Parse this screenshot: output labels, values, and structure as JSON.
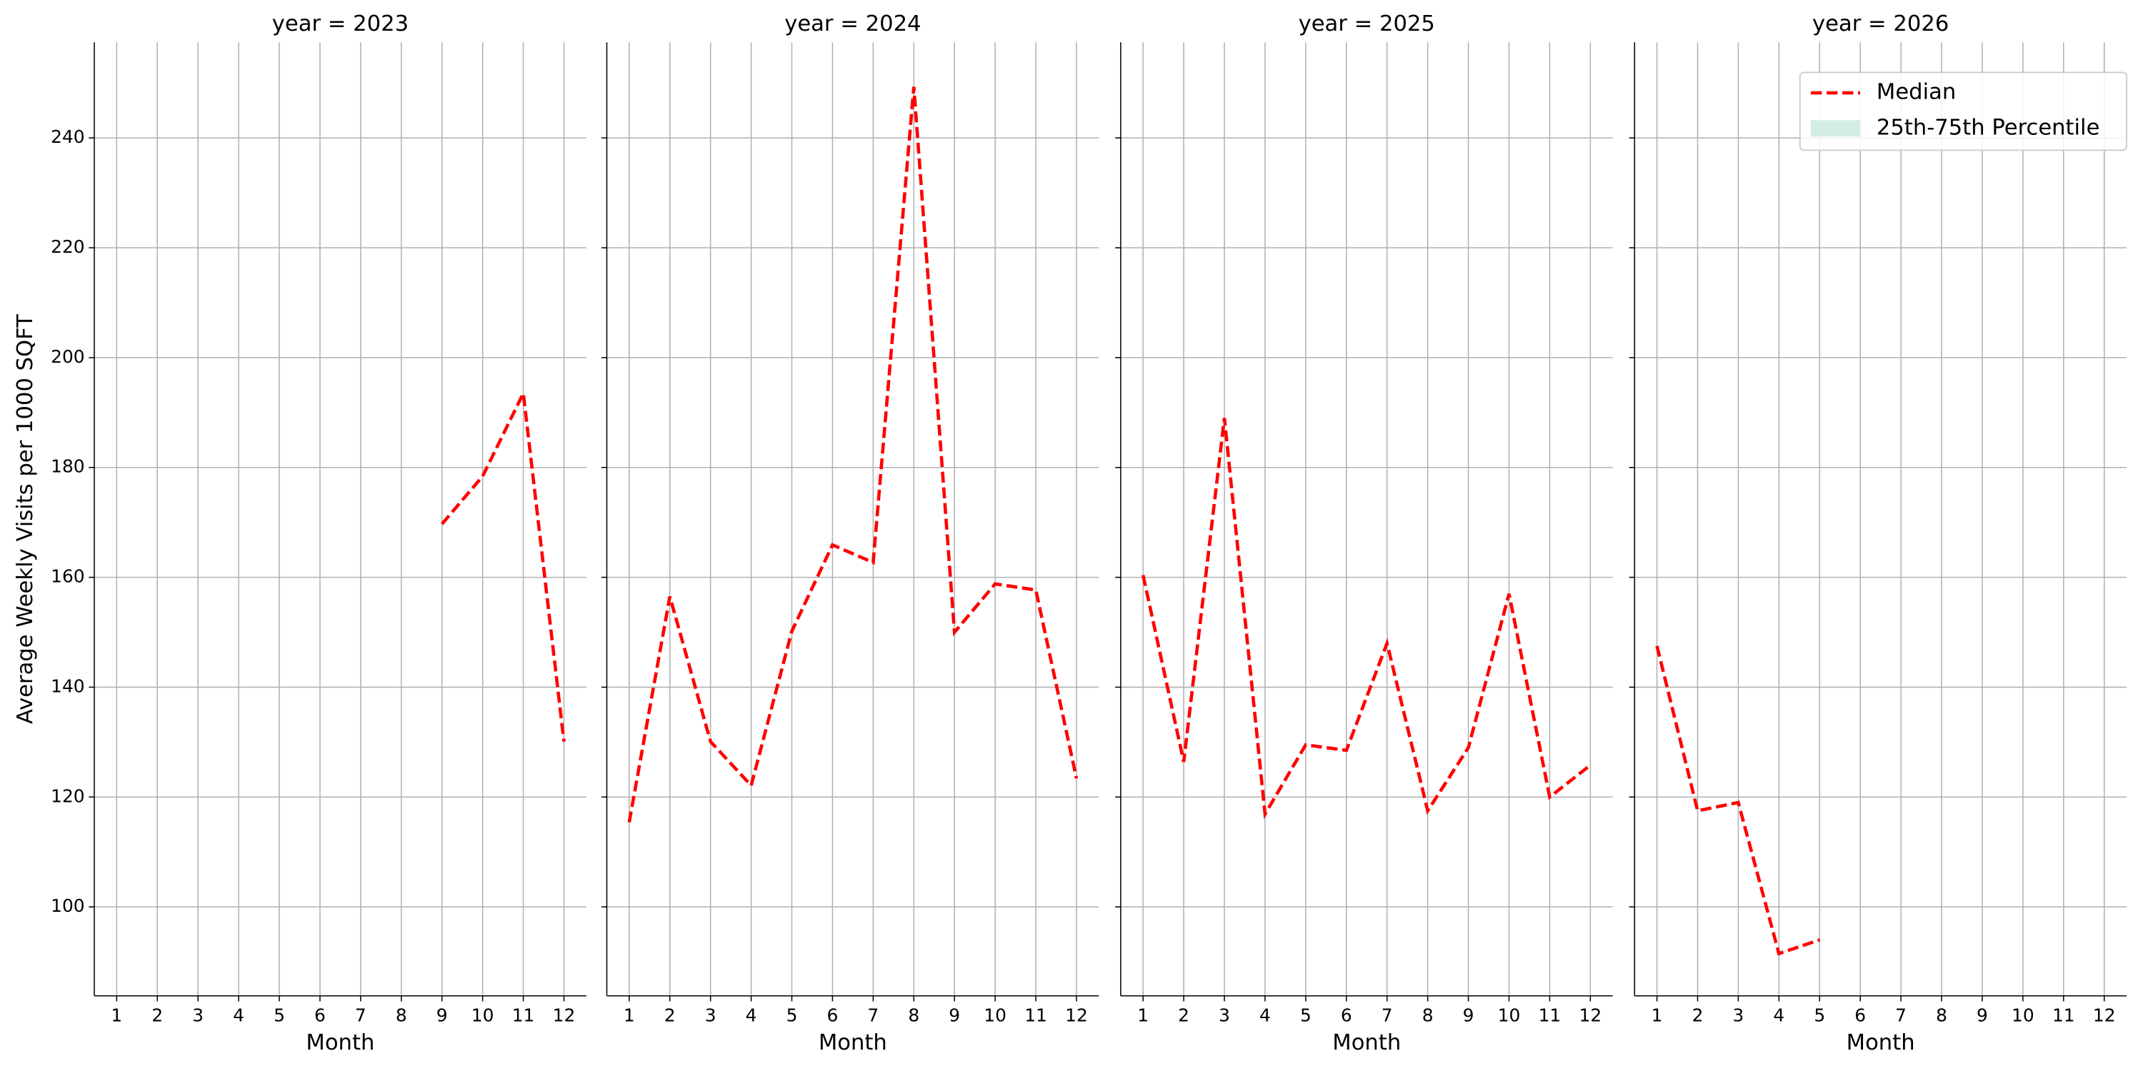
{
  "chart_data": [
    {
      "type": "line",
      "title": "year = 2023",
      "xlabel": "Month",
      "ylabel": "Average Weekly Visits per 1000 SQFT",
      "x": [
        1,
        2,
        3,
        4,
        5,
        6,
        7,
        8,
        9,
        10,
        11,
        12
      ],
      "xlim": [
        0.45,
        12.55
      ],
      "xticks": [
        1,
        2,
        3,
        4,
        5,
        6,
        7,
        8,
        9,
        10,
        11,
        12
      ],
      "ylim": [
        83.8,
        257.4
      ],
      "yticks": [
        100,
        120,
        140,
        160,
        180,
        200,
        220,
        240
      ],
      "ytick_labels": true,
      "grid": true,
      "series": [
        {
          "name": "Median",
          "color": "#ff0000",
          "values": [
            null,
            null,
            null,
            null,
            null,
            null,
            null,
            null,
            169.7,
            178.4,
            193.5,
            130.1
          ]
        }
      ]
    },
    {
      "type": "line",
      "title": "year = 2024",
      "xlabel": "Month",
      "x": [
        1,
        2,
        3,
        4,
        5,
        6,
        7,
        8,
        9,
        10,
        11,
        12
      ],
      "xlim": [
        0.45,
        12.55
      ],
      "xticks": [
        1,
        2,
        3,
        4,
        5,
        6,
        7,
        8,
        9,
        10,
        11,
        12
      ],
      "ylim": [
        83.8,
        257.4
      ],
      "yticks": [
        100,
        120,
        140,
        160,
        180,
        200,
        220,
        240
      ],
      "ytick_labels": false,
      "grid": true,
      "series": [
        {
          "name": "Median",
          "color": "#ff0000",
          "values": [
            115.4,
            156.5,
            130.1,
            122.1,
            150.2,
            165.9,
            162.7,
            249.3,
            150,
            158.8,
            157.7,
            123.4
          ]
        }
      ]
    },
    {
      "type": "line",
      "title": "year = 2025",
      "xlabel": "Month",
      "x": [
        1,
        2,
        3,
        4,
        5,
        6,
        7,
        8,
        9,
        10,
        11,
        12
      ],
      "xlim": [
        0.45,
        12.55
      ],
      "xticks": [
        1,
        2,
        3,
        4,
        5,
        6,
        7,
        8,
        9,
        10,
        11,
        12
      ],
      "ylim": [
        83.8,
        257.4
      ],
      "yticks": [
        100,
        120,
        140,
        160,
        180,
        200,
        220,
        240
      ],
      "ytick_labels": false,
      "grid": true,
      "series": [
        {
          "name": "Median",
          "color": "#ff0000",
          "values": [
            160.4,
            126.4,
            189,
            116.9,
            129.5,
            128.5,
            148,
            117.5,
            129,
            157,
            120,
            125.8
          ]
        }
      ]
    },
    {
      "type": "line",
      "title": "year = 2026",
      "xlabel": "Month",
      "x": [
        1,
        2,
        3,
        4,
        5,
        6,
        7,
        8,
        9,
        10,
        11,
        12
      ],
      "xlim": [
        0.45,
        12.55
      ],
      "xticks": [
        1,
        2,
        3,
        4,
        5,
        6,
        7,
        8,
        9,
        10,
        11,
        12
      ],
      "ylim": [
        83.8,
        257.4
      ],
      "yticks": [
        100,
        120,
        140,
        160,
        180,
        200,
        220,
        240
      ],
      "ytick_labels": false,
      "grid": true,
      "legend": "upper right",
      "series": [
        {
          "name": "Median",
          "color": "#ff0000",
          "values": [
            147.5,
            117.5,
            119,
            91.5,
            94,
            null,
            null,
            null,
            null,
            null,
            null,
            null
          ]
        },
        {
          "name": "25th-75th Percentile",
          "color": "#d3ede4",
          "band": true,
          "values": [
            null,
            null,
            null,
            null,
            null,
            null,
            null,
            null,
            null,
            null,
            null,
            null
          ]
        }
      ]
    }
  ]
}
